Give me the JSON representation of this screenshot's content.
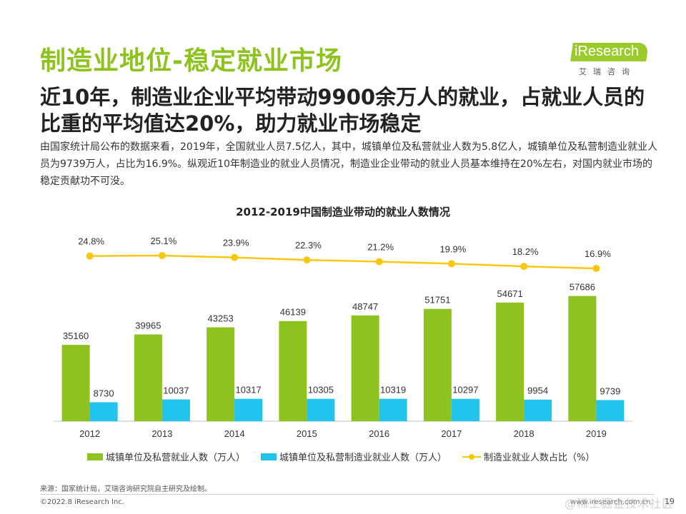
{
  "title": "制造业地位-稳定就业市场",
  "logo": {
    "text": "iResearch",
    "cn": "艾瑞咨询"
  },
  "subtitle": "近10年，制造业企业平均带动9900余万人的就业，占就业人员的比重的平均值达20%，助力就业市场稳定",
  "description": "由国家统计局公布的数据来看，2019年，全国就业人员7.5亿人，其中，城镇单位及私营就业人数为5.8亿人，城镇单位及私营制造业就业人员为9739万人，占比为16.9%。纵观近10年制造业的就业人员情况，制造业企业带动的就业人员基本维持在20%左右，对国内就业市场的稳定贡献功不可没。",
  "chart_data": {
    "type": "bar",
    "title": "2012-2019中国制造业带动的就业人数情况",
    "categories": [
      "2012",
      "2013",
      "2014",
      "2015",
      "2016",
      "2017",
      "2018",
      "2019"
    ],
    "series": [
      {
        "name": "城镇单位及私营就业人数（万人）",
        "type": "bar",
        "color": "#8DC21F",
        "values": [
          35160,
          39965,
          43253,
          46139,
          48747,
          51751,
          54671,
          57686
        ]
      },
      {
        "name": "城镇单位及私营制造业就业人数（万人）",
        "type": "bar",
        "color": "#22C4EE",
        "values": [
          8730,
          10037,
          10317,
          10305,
          10319,
          10297,
          9954,
          9739
        ]
      },
      {
        "name": "制造业就业人数占比（%）",
        "type": "line",
        "color": "#F9C80E",
        "values": [
          24.8,
          25.1,
          23.9,
          22.3,
          21.2,
          19.9,
          18.2,
          16.9
        ],
        "labels": [
          "24.8%",
          "25.1%",
          "23.9%",
          "22.3%",
          "21.2%",
          "19.9%",
          "18.2%",
          "16.9%"
        ]
      }
    ],
    "legend_position": "bottom"
  },
  "source": "来源：国家统计局，艾瑞咨询研究院自主研究及绘制。",
  "copyright": "©2022.8 iResearch Inc.",
  "website": "www.iresearch.com.cn",
  "page_number": "19",
  "watermark": "@稀土掘金技术社区"
}
